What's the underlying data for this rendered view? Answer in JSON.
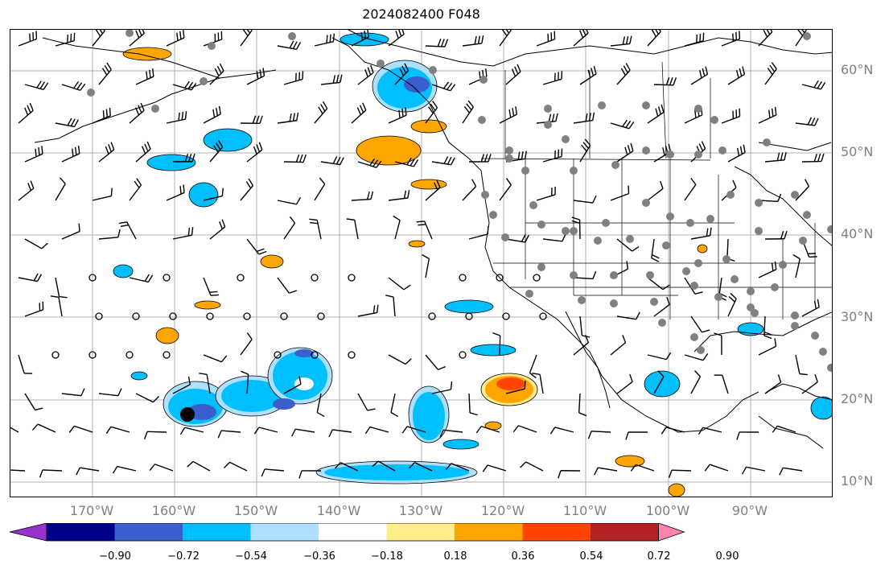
{
  "title": "2024082400 F048",
  "map": {
    "lat_labels": [
      "60°N",
      "50°N",
      "40°N",
      "30°N",
      "20°N",
      "10°N"
    ],
    "lon_labels": [
      "170°W",
      "160°W",
      "150°W",
      "140°W",
      "130°W",
      "120°W",
      "110°W",
      "100°W",
      "90°W"
    ]
  },
  "colorbar": {
    "colors": [
      "#9932CC",
      "#00008B",
      "#3A5FCD",
      "#00BFFF",
      "#ADDFFF",
      "#FFFFFF",
      "#FFEC8B",
      "#FFA500",
      "#FF4500",
      "#B22222",
      "#FF85B0"
    ],
    "tick_labels": [
      "−0.90",
      "−0.72",
      "−0.54",
      "−0.36",
      "−0.18",
      "0.18",
      "0.36",
      "0.54",
      "0.72",
      "0.90"
    ]
  },
  "legend_colors": {
    "neg_light": "#ADDFFF",
    "neg_mid": "#00BFFF",
    "neg_strong": "#3A5FCD",
    "pos_light": "#FFEC8B",
    "pos_mid": "#FFA500",
    "pos_strong": "#FF4500",
    "station": "#808080"
  }
}
